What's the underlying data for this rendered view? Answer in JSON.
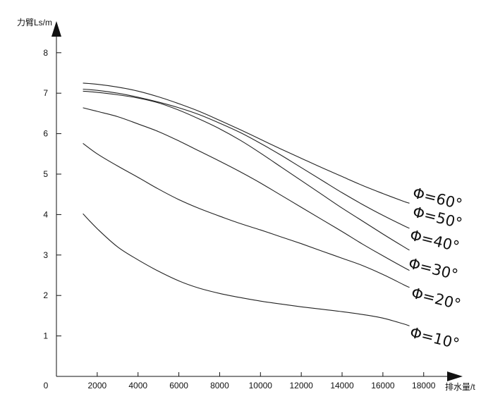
{
  "chart_data": {
    "type": "line",
    "title": "",
    "xlabel": "排水量/t",
    "ylabel": "力臂Ls/m",
    "xlim": [
      0,
      19500
    ],
    "ylim": [
      0,
      8.8
    ],
    "x_ticks": [
      2000,
      4000,
      6000,
      8000,
      10000,
      12000,
      14000,
      16000,
      18000
    ],
    "y_ticks": [
      1,
      2,
      3,
      4,
      5,
      6,
      7,
      8
    ],
    "origin_label": "0",
    "grid": false,
    "legend": "none",
    "series": [
      {
        "name": "Φ=10°",
        "x": [
          1300,
          2000,
          3000,
          4000,
          5000,
          6000,
          7000,
          8000,
          9000,
          10000,
          11000,
          12000,
          13000,
          14000,
          15000,
          16000,
          17000,
          17300
        ],
        "y": [
          4.02,
          3.65,
          3.2,
          2.88,
          2.6,
          2.36,
          2.18,
          2.05,
          1.95,
          1.86,
          1.79,
          1.72,
          1.66,
          1.6,
          1.53,
          1.44,
          1.3,
          1.25
        ]
      },
      {
        "name": "Φ=20°",
        "x": [
          1300,
          2000,
          3000,
          4000,
          5000,
          6000,
          7000,
          8000,
          9000,
          10000,
          11000,
          12000,
          13000,
          14000,
          15000,
          16000,
          17000,
          17300
        ],
        "y": [
          5.76,
          5.5,
          5.2,
          4.92,
          4.63,
          4.37,
          4.15,
          3.96,
          3.78,
          3.62,
          3.45,
          3.28,
          3.1,
          2.92,
          2.74,
          2.52,
          2.27,
          2.2
        ]
      },
      {
        "name": "Φ=30°",
        "x": [
          1300,
          2000,
          3000,
          4000,
          5000,
          6000,
          7000,
          8000,
          9000,
          10000,
          11000,
          12000,
          13000,
          14000,
          15000,
          16000,
          17000,
          17300
        ],
        "y": [
          6.64,
          6.55,
          6.42,
          6.24,
          6.05,
          5.82,
          5.57,
          5.32,
          5.06,
          4.78,
          4.48,
          4.18,
          3.88,
          3.58,
          3.27,
          2.98,
          2.7,
          2.62
        ]
      },
      {
        "name": "Φ=40°",
        "x": [
          1300,
          2000,
          3000,
          4000,
          5000,
          6000,
          7000,
          8000,
          9000,
          10000,
          11000,
          12000,
          13000,
          14000,
          15000,
          16000,
          17000,
          17300
        ],
        "y": [
          7.05,
          7.02,
          6.96,
          6.88,
          6.76,
          6.58,
          6.36,
          6.12,
          5.84,
          5.52,
          5.18,
          4.84,
          4.5,
          4.16,
          3.84,
          3.52,
          3.21,
          3.12
        ]
      },
      {
        "name": "Φ=50°",
        "x": [
          1300,
          2000,
          3000,
          4000,
          5000,
          6000,
          7000,
          8000,
          9000,
          10000,
          11000,
          12000,
          13000,
          14000,
          15000,
          16000,
          17000,
          17300
        ],
        "y": [
          7.1,
          7.07,
          7.0,
          6.9,
          6.78,
          6.64,
          6.47,
          6.26,
          6.03,
          5.76,
          5.47,
          5.16,
          4.85,
          4.54,
          4.25,
          3.98,
          3.73,
          3.66
        ]
      },
      {
        "name": "Φ=60°",
        "x": [
          1300,
          2000,
          3000,
          4000,
          5000,
          6000,
          7000,
          8000,
          9000,
          10000,
          11000,
          12000,
          13000,
          14000,
          15000,
          16000,
          17000,
          17300
        ],
        "y": [
          7.25,
          7.22,
          7.15,
          7.05,
          6.91,
          6.74,
          6.55,
          6.33,
          6.1,
          5.86,
          5.62,
          5.39,
          5.16,
          4.94,
          4.72,
          4.52,
          4.33,
          4.28
        ]
      }
    ]
  }
}
